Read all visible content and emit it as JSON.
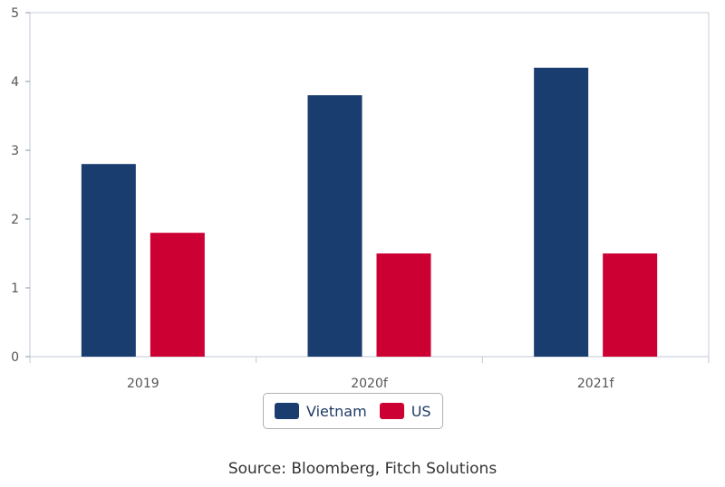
{
  "chart_data": {
    "type": "bar",
    "categories": [
      "2019",
      "2020f",
      "2021f"
    ],
    "series": [
      {
        "name": "Vietnam",
        "values": [
          2.8,
          3.8,
          4.2
        ],
        "color": "#1a3d6f"
      },
      {
        "name": "US",
        "values": [
          1.8,
          1.5,
          1.5
        ],
        "color": "#cc0033"
      }
    ],
    "ylim": [
      0,
      5
    ],
    "yticks": [
      "0",
      "1",
      "2",
      "3",
      "4",
      "5"
    ],
    "grid": false,
    "legend_position": "bottom-center"
  },
  "source": "Source: Bloomberg, Fitch Solutions"
}
